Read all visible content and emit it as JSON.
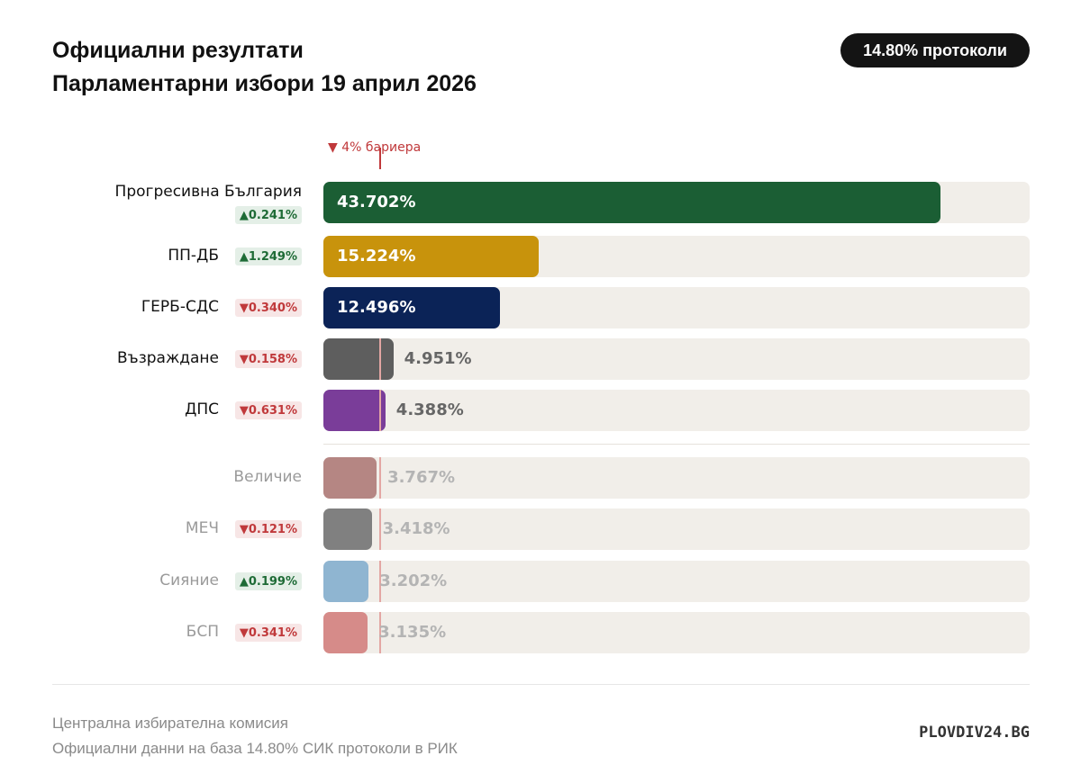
{
  "header": {
    "title_line1": "Официални резултати",
    "title_line2": "Парламентарни избори 19 април 2026",
    "protocols_badge": "14.80% протоколи"
  },
  "chart_data": {
    "type": "bar",
    "orientation": "horizontal",
    "unit": "%",
    "xlim": [
      0,
      50
    ],
    "threshold": {
      "value": 4,
      "label": "▼ 4% бариера"
    },
    "categories": [
      "Прогресивна България",
      "ПП-ДБ",
      "ГЕРБ-СДС",
      "Възраждане",
      "ДПС",
      "Величие",
      "МЕЧ",
      "Сияние",
      "БСП"
    ],
    "values": [
      43.702,
      15.224,
      12.496,
      4.951,
      4.388,
      3.767,
      3.418,
      3.202,
      3.135
    ],
    "value_labels": [
      "43.702%",
      "15.224%",
      "12.496%",
      "4.951%",
      "4.388%",
      "3.767%",
      "3.418%",
      "3.202%",
      "3.135%"
    ],
    "changes": [
      "▲0.241%",
      "▲1.249%",
      "▼0.340%",
      "▼0.158%",
      "▼0.631%",
      "",
      "▼0.121%",
      "▲0.199%",
      "▼0.341%"
    ],
    "change_directions": [
      "up",
      "up",
      "down",
      "down",
      "down",
      "",
      "down",
      "up",
      "down"
    ],
    "colors": [
      "#1b5e34",
      "#c8930c",
      "#0b2357",
      "#5e5e5e",
      "#7a3d99",
      "#b58683",
      "#808080",
      "#8fb5d1",
      "#d68b89"
    ]
  },
  "footer": {
    "source_line1": "Централна избирателна комисия",
    "source_line2": "Официални данни на база 14.80% СИК протоколи в РИК",
    "brand": "PLOVDIV24.BG"
  }
}
